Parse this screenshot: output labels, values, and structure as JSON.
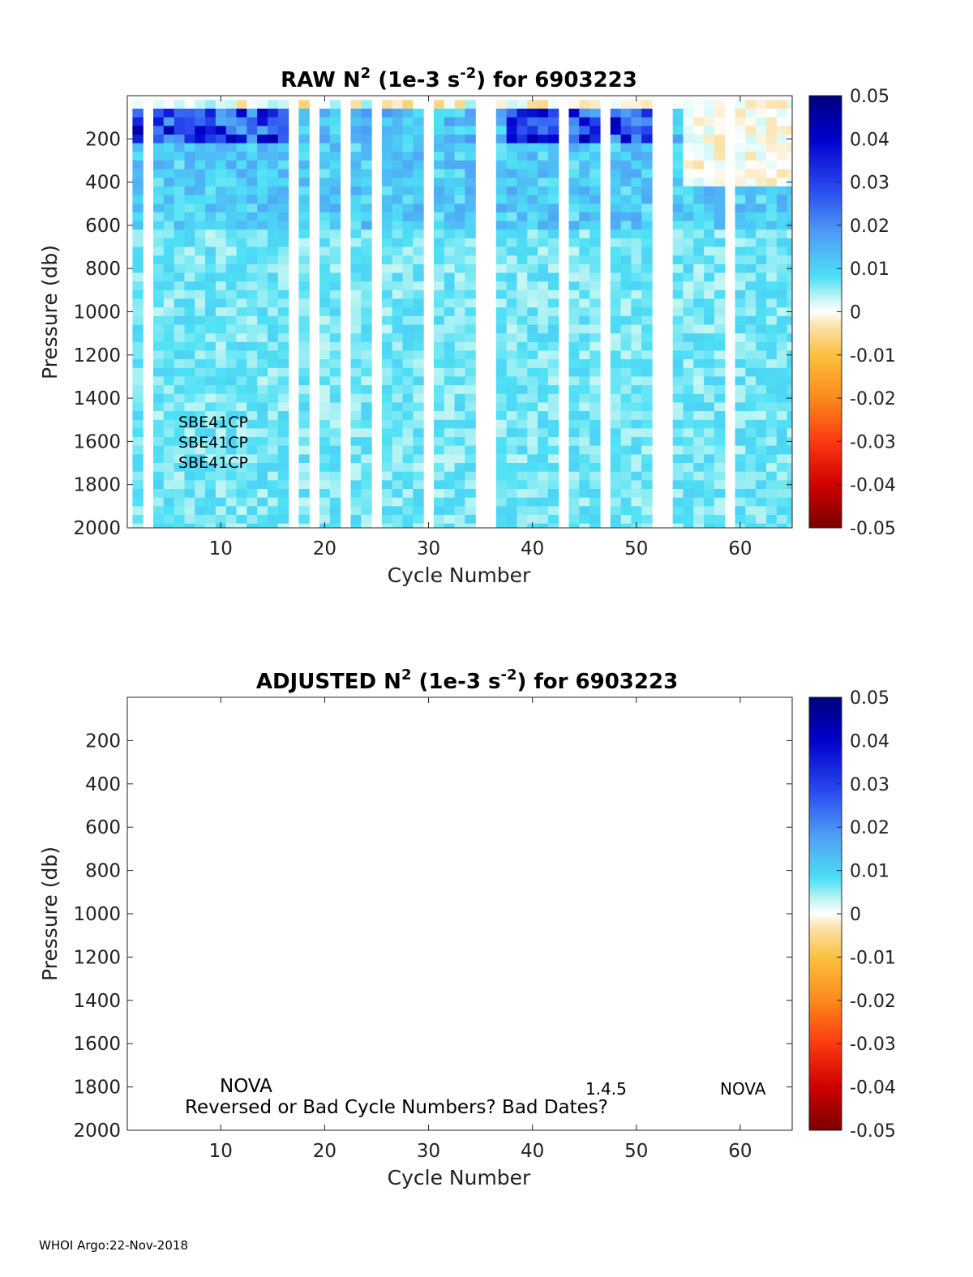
{
  "chart_data": [
    {
      "type": "heatmap",
      "title": "RAW N² (1e-3 s⁻²) for 6903223",
      "title_parts": {
        "prefix": "RAW N",
        "sup1": "2",
        "mid": " (1e-3 s",
        "sup2": "-2",
        "suffix": ") for 6903223"
      },
      "xlabel": "Cycle Number",
      "ylabel": "Pressure (db)",
      "xlim": [
        1,
        65
      ],
      "ylim": [
        0,
        2000
      ],
      "y_reversed": true,
      "xticks": [
        10,
        20,
        30,
        40,
        50,
        60
      ],
      "yticks": [
        200,
        400,
        600,
        800,
        1000,
        1200,
        1400,
        1600,
        1800,
        2000
      ],
      "colorbar": {
        "range": [
          -0.05,
          0.05
        ],
        "ticks": [
          "0.05",
          "0.04",
          "0.03",
          "0.02",
          "0.01",
          "0",
          "-0.01",
          "-0.02",
          "-0.03",
          "-0.04",
          "-0.05"
        ],
        "colormap": "jet-with-white-center"
      },
      "missing_cycles": [
        3,
        17,
        19,
        22,
        25,
        30,
        35,
        36,
        43,
        47,
        52,
        53,
        59
      ],
      "surface_start_db": 20,
      "typical_values": {
        "near_surface": 0.03,
        "thermocline": 0.012,
        "deep": 0.006
      },
      "annotations": [
        "SBE41CP",
        "SBE41CP",
        "SBE41CP"
      ]
    },
    {
      "type": "heatmap",
      "title": "ADJUSTED N² (1e-3 s⁻²) for 6903223",
      "title_parts": {
        "prefix": "ADJUSTED N",
        "sup1": "2",
        "mid": " (1e-3 s",
        "sup2": "-2",
        "suffix": ") for 6903223"
      },
      "xlabel": "Cycle Number",
      "ylabel": "Pressure (db)",
      "xlim": [
        1,
        65
      ],
      "ylim": [
        0,
        2000
      ],
      "y_reversed": true,
      "xticks": [
        10,
        20,
        30,
        40,
        50,
        60
      ],
      "yticks": [
        200,
        400,
        600,
        800,
        1000,
        1200,
        1400,
        1600,
        1800,
        2000
      ],
      "colorbar": {
        "range": [
          -0.05,
          0.05
        ],
        "ticks": [
          "0.05",
          "0.04",
          "0.03",
          "0.02",
          "0.01",
          "0",
          "-0.01",
          "-0.02",
          "-0.03",
          "-0.04",
          "-0.05"
        ],
        "colormap": "jet-with-white-center"
      },
      "values": [],
      "annotations": [
        "NOVA",
        "Reversed or Bad Cycle Numbers? Bad Dates?",
        "1.4.5",
        "NOVA"
      ]
    }
  ],
  "footer": "WHOI Argo:22-Nov-2018"
}
